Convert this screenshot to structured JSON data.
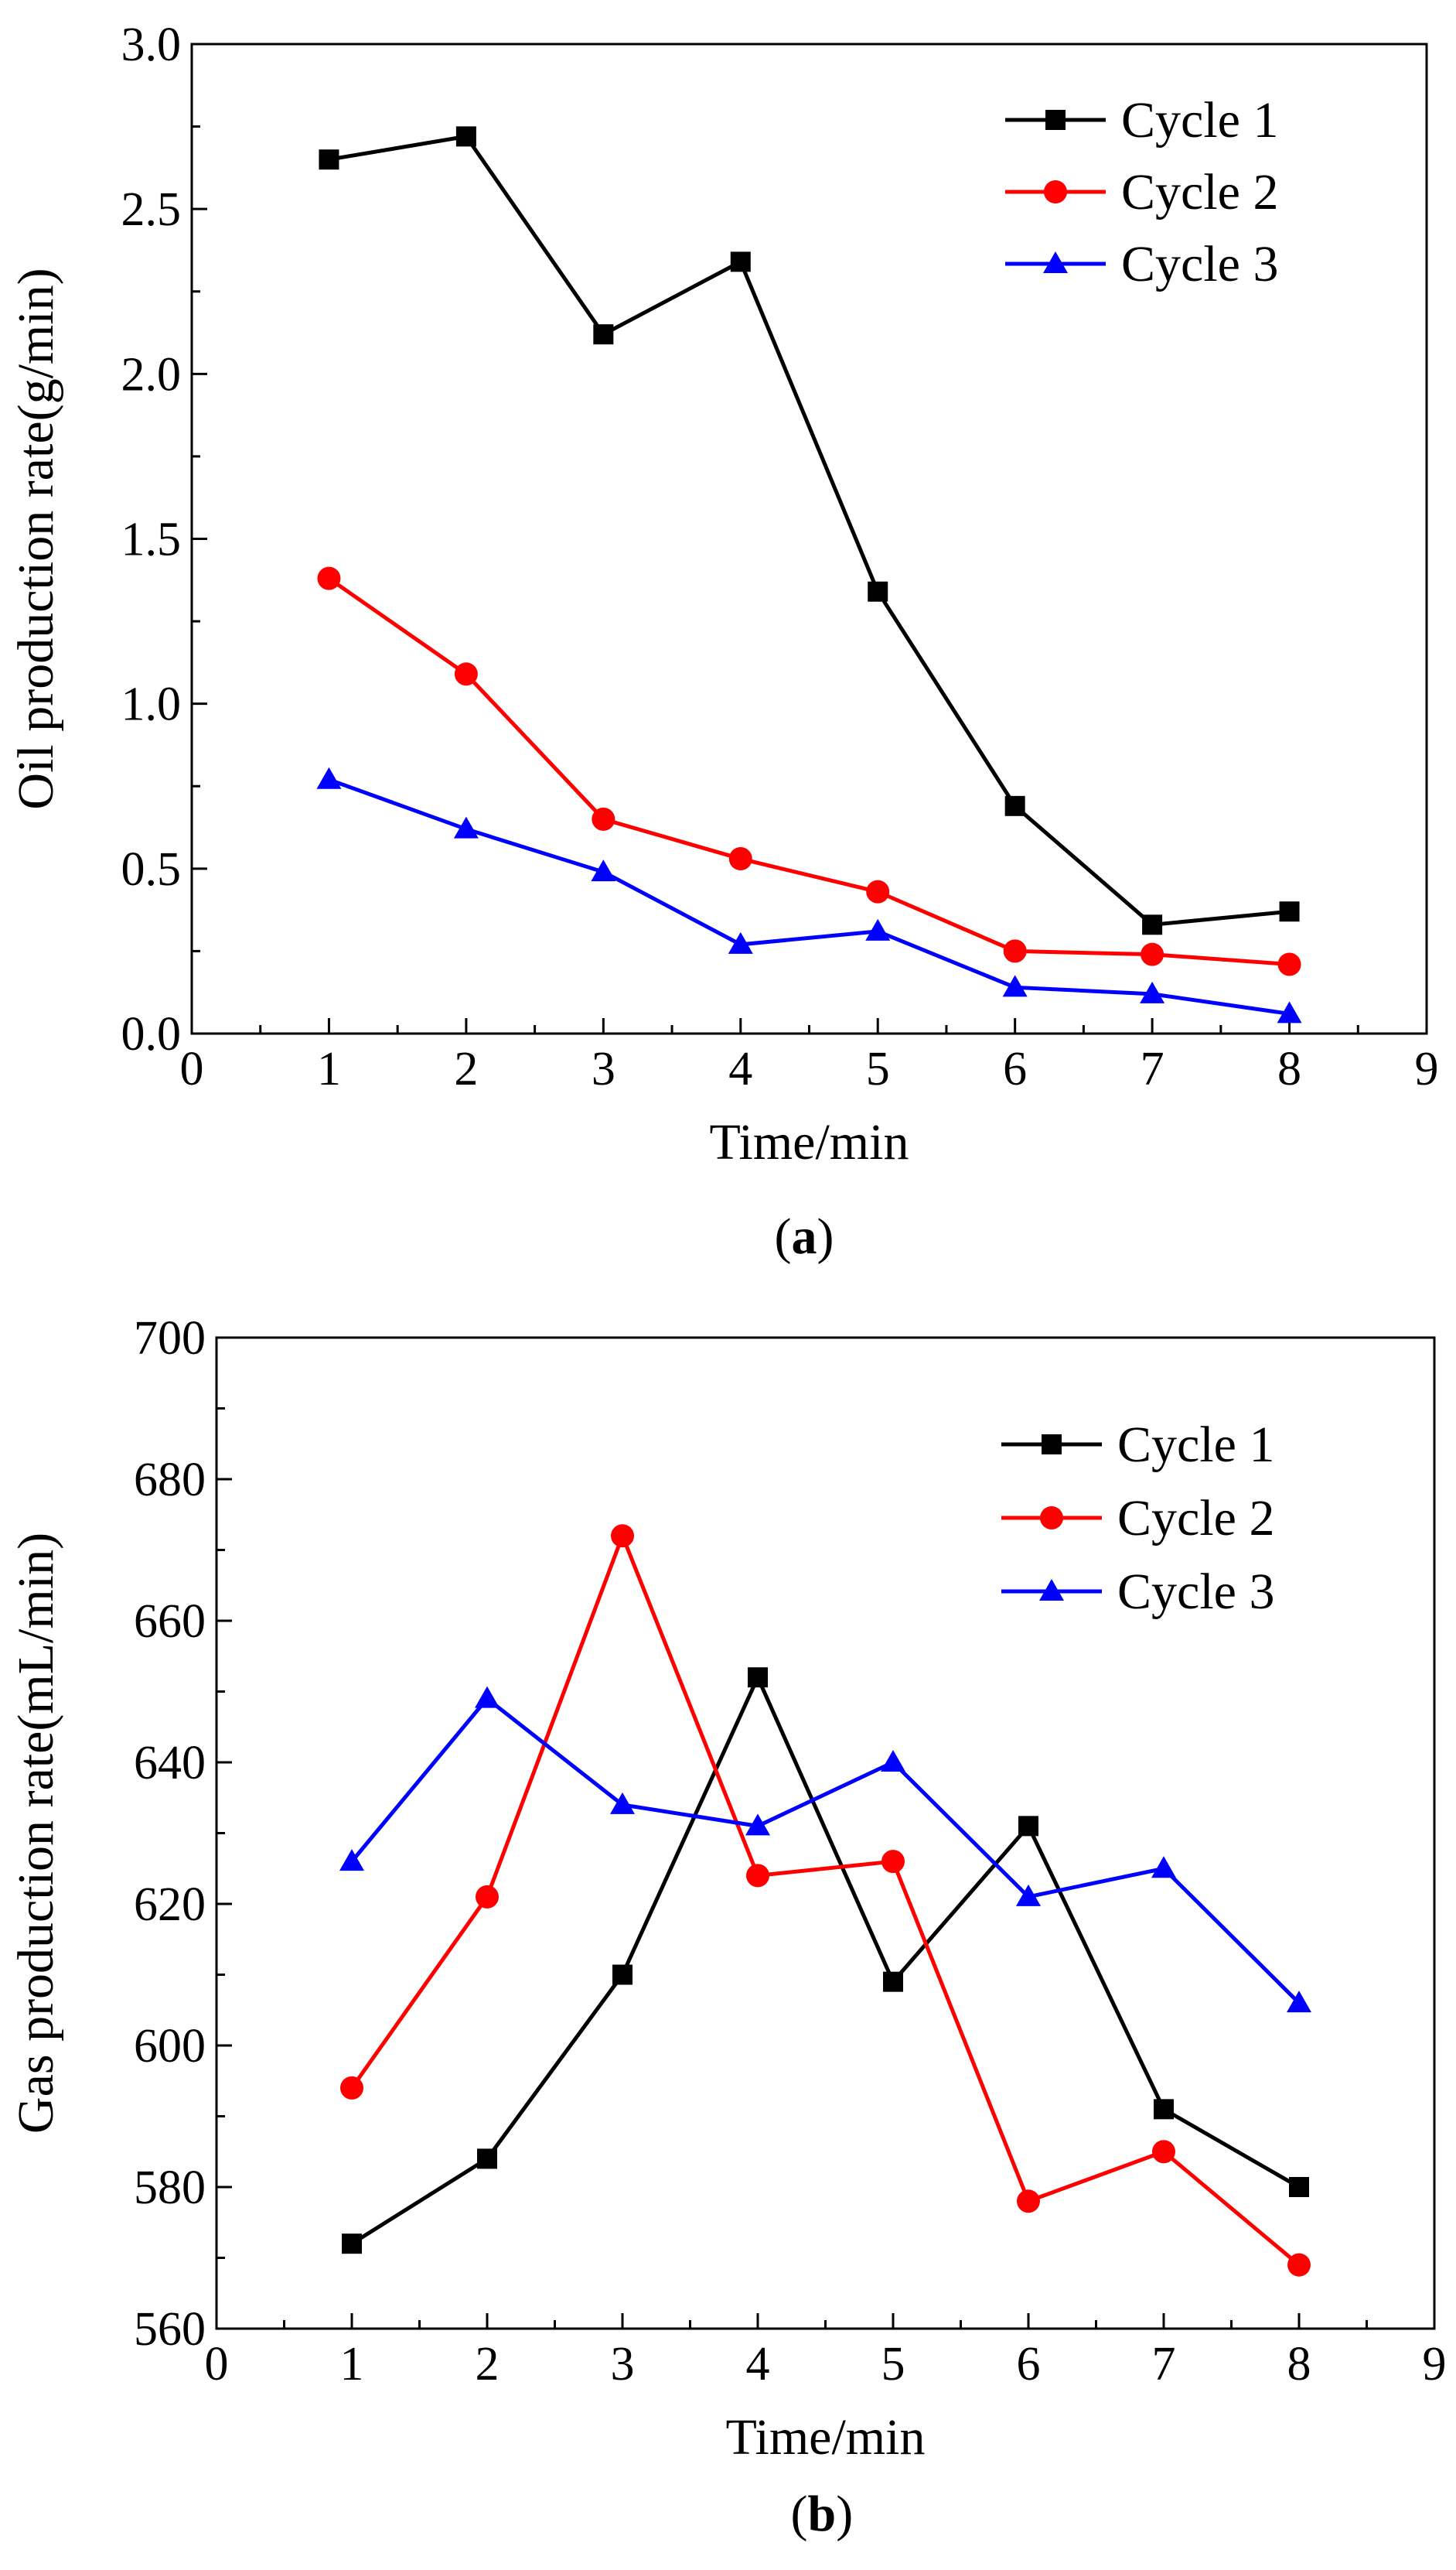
{
  "chart_data": [
    {
      "type": "line",
      "panel_label": "a",
      "caption_open": "(",
      "caption_close": ")",
      "xlabel": "Time/min",
      "ylabel": "Oil production rate(g/min)",
      "xlim": [
        0,
        9
      ],
      "ylim": [
        0.0,
        3.0
      ],
      "x_ticks": [
        0,
        1,
        2,
        3,
        4,
        5,
        6,
        7,
        8,
        9
      ],
      "x_tick_labels": [
        "0",
        "1",
        "2",
        "3",
        "4",
        "5",
        "6",
        "7",
        "8",
        "9"
      ],
      "y_ticks": [
        0.0,
        0.5,
        1.0,
        1.5,
        2.0,
        2.5,
        3.0
      ],
      "y_tick_labels": [
        "0.0",
        "0.5",
        "1.0",
        "1.5",
        "2.0",
        "2.5",
        "3.0"
      ],
      "legend_position": "top-right",
      "x": [
        1,
        2,
        3,
        4,
        5,
        6,
        7,
        8
      ],
      "series": [
        {
          "name": "Cycle 1",
          "color": "#000000",
          "marker": "square",
          "values": [
            2.65,
            2.72,
            2.12,
            2.34,
            1.34,
            0.69,
            0.33,
            0.37
          ]
        },
        {
          "name": "Cycle 2",
          "color": "#ff0000",
          "marker": "circle",
          "values": [
            1.38,
            1.09,
            0.65,
            0.53,
            0.43,
            0.25,
            0.24,
            0.21
          ]
        },
        {
          "name": "Cycle 3",
          "color": "#0000ff",
          "marker": "triangle",
          "values": [
            0.77,
            0.62,
            0.49,
            0.27,
            0.31,
            0.14,
            0.12,
            0.06
          ]
        }
      ]
    },
    {
      "type": "line",
      "panel_label": "b",
      "caption_open": "(",
      "caption_close": ")",
      "xlabel": "Time/min",
      "ylabel": "Gas production rate(mL/min)",
      "xlim": [
        0,
        9
      ],
      "ylim": [
        560,
        700
      ],
      "x_ticks": [
        0,
        1,
        2,
        3,
        4,
        5,
        6,
        7,
        8,
        9
      ],
      "x_tick_labels": [
        "0",
        "1",
        "2",
        "3",
        "4",
        "5",
        "6",
        "7",
        "8",
        "9"
      ],
      "y_ticks": [
        560,
        580,
        600,
        620,
        640,
        660,
        680,
        700
      ],
      "y_tick_labels": [
        "560",
        "580",
        "600",
        "620",
        "640",
        "660",
        "680",
        "700"
      ],
      "legend_position": "top-right",
      "x": [
        1,
        2,
        3,
        4,
        5,
        6,
        7,
        8
      ],
      "series": [
        {
          "name": "Cycle 1",
          "color": "#000000",
          "marker": "square",
          "values": [
            572,
            584,
            610,
            652,
            609,
            631,
            591,
            580
          ]
        },
        {
          "name": "Cycle 2",
          "color": "#ff0000",
          "marker": "circle",
          "values": [
            594,
            621,
            672,
            624,
            626,
            578,
            585,
            569
          ]
        },
        {
          "name": "Cycle 3",
          "color": "#0000ff",
          "marker": "triangle",
          "values": [
            626,
            649,
            634,
            631,
            640,
            621,
            625,
            606
          ]
        }
      ]
    }
  ]
}
